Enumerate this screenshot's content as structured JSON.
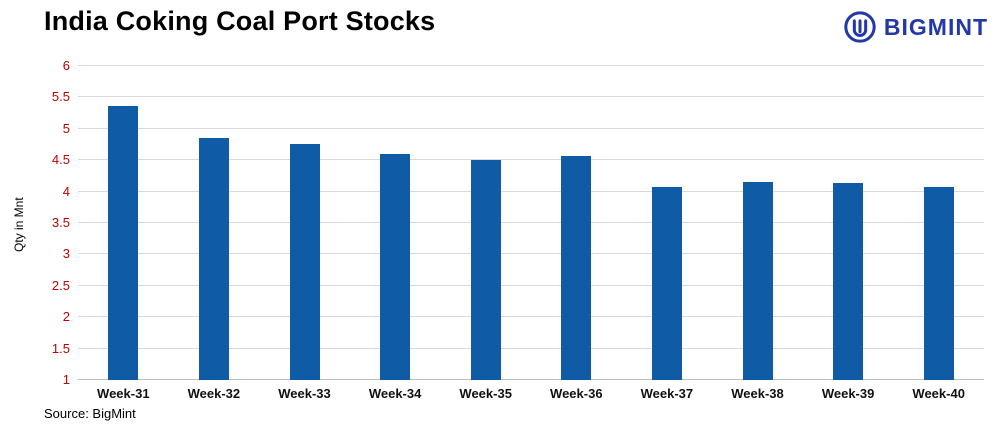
{
  "title": "India Coking Coal Port Stocks",
  "logo": {
    "text": "BIGMINT",
    "icon": "bigmint-trident-circle-icon"
  },
  "source": "Source: BigMint",
  "colors": {
    "bar": "#0f5ba5",
    "ytick_label": "#c00000",
    "gridline": "#d9d9d9",
    "axisline": "#bfbfbf",
    "brand": "#2438a8",
    "title": "#000000"
  },
  "chart_data": {
    "type": "bar",
    "title": "India Coking Coal Port Stocks",
    "categories": [
      "Week-31",
      "Week-32",
      "Week-33",
      "Week-34",
      "Week-35",
      "Week-36",
      "Week-37",
      "Week-38",
      "Week-39",
      "Week-40"
    ],
    "values": [
      5.36,
      4.85,
      4.76,
      4.6,
      4.5,
      4.57,
      4.08,
      4.16,
      4.13,
      4.08
    ],
    "xlabel": "",
    "ylabel": "Qty in Mnt",
    "ylim": [
      1,
      6
    ],
    "yticks": [
      1,
      1.5,
      2,
      2.5,
      3,
      3.5,
      4,
      4.5,
      5,
      5.5,
      6
    ],
    "ytick_labels": [
      "1",
      "1.5",
      "2",
      "2.5",
      "3",
      "3.5",
      "4",
      "4.5",
      "5",
      "5.5",
      "6"
    ],
    "grid": true,
    "legend": false,
    "bar_color": "#0f5ba5",
    "source": "Source: BigMint"
  }
}
